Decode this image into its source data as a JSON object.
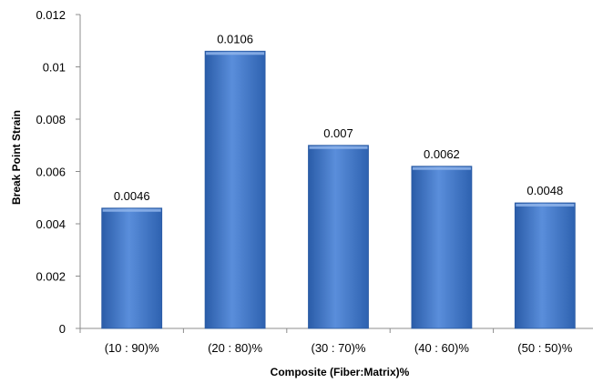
{
  "chart_data": {
    "type": "bar",
    "categories": [
      "(10 : 90)%",
      "(20 : 80)%",
      "(30 : 70)%",
      "(40 : 60)%",
      "(50 : 50)%"
    ],
    "values": [
      0.0046,
      0.0106,
      0.007,
      0.0062,
      0.0048
    ],
    "data_labels": [
      "0.0046",
      "0.0106",
      "0.007",
      "0.0062",
      "0.0048"
    ],
    "title": "",
    "xlabel": "Composite (Fiber:Matrix)%",
    "ylabel": "Break Point Strain",
    "ylim": [
      0,
      0.012
    ],
    "yticks": [
      0,
      0.002,
      0.004,
      0.006,
      0.008,
      0.01,
      0.012
    ],
    "ytick_labels": [
      "0",
      "0.002",
      "0.004",
      "0.006",
      "0.008",
      "0.01",
      "0.012"
    ],
    "grid": false,
    "legend": "none",
    "bar_color": "#3f76c8",
    "bar_color_dark": "#1f4f97",
    "bar_color_light": "#6b9be0"
  }
}
